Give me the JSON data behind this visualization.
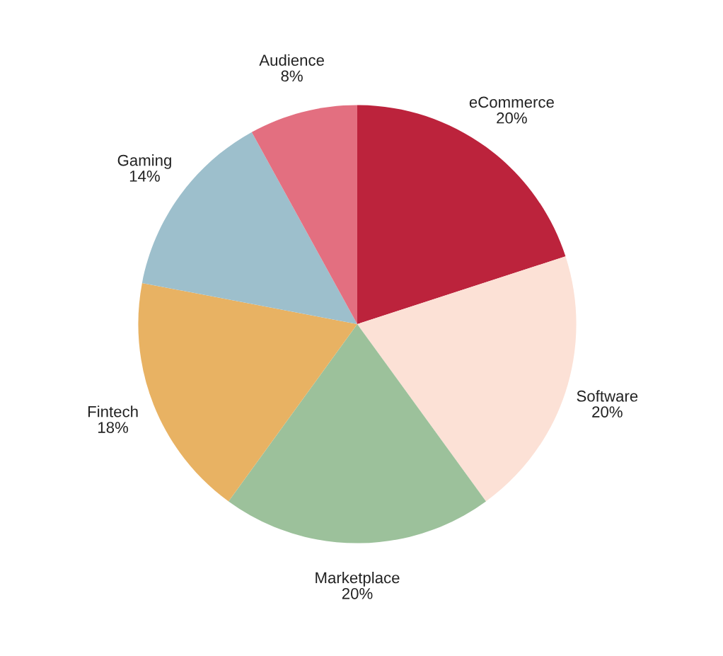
{
  "chart_data": {
    "type": "pie",
    "categories": [
      "eCommerce",
      "Software",
      "Marketplace",
      "Fintech",
      "Gaming",
      "Audience"
    ],
    "values": [
      20,
      20,
      20,
      18,
      14,
      8
    ],
    "value_labels": [
      "20%",
      "20%",
      "20%",
      "18%",
      "14%",
      "8%"
    ],
    "colors": [
      "#bc233c",
      "#fce1d6",
      "#9cc19b",
      "#e8b263",
      "#9dbfcc",
      "#e36f80"
    ]
  }
}
